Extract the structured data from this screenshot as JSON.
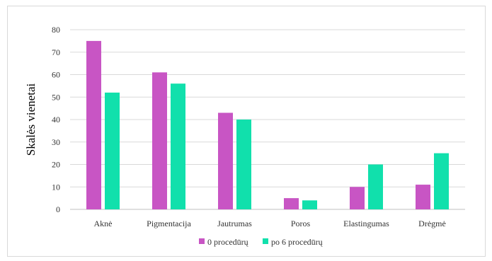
{
  "chart_data": {
    "type": "bar",
    "title": "",
    "xlabel": "",
    "ylabel": "Skalės vienetai",
    "ylim": [
      0,
      80
    ],
    "yticks": [
      0,
      10,
      20,
      30,
      40,
      50,
      60,
      70,
      80
    ],
    "grid": true,
    "legend_position": "bottom",
    "categories": [
      "Aknė",
      "Pigmentacija",
      "Jautrumas",
      "Poros",
      "Elastingumas",
      "Drėgmė"
    ],
    "series": [
      {
        "name": "0 procedūrų",
        "color": "#c855c4",
        "values": [
          75,
          61,
          43,
          5,
          10,
          11
        ]
      },
      {
        "name": "po 6 procedūrų",
        "color": "#11e0ac",
        "values": [
          52,
          56,
          40,
          4,
          20,
          25
        ]
      }
    ]
  }
}
